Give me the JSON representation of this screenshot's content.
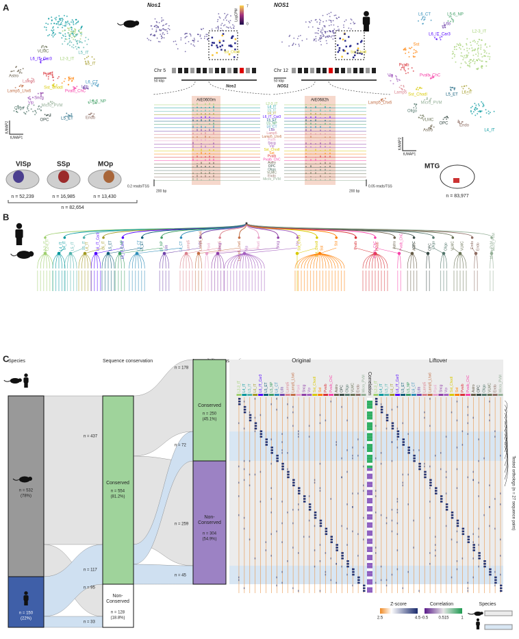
{
  "panel_labels": [
    "A",
    "B",
    "C"
  ],
  "subclasses": [
    "L2-3_IT",
    "L4_IT",
    "L5_IT",
    "L6_IT",
    "L6_IT_Car3",
    "L5_ET",
    "L5_NP",
    "L6_CT",
    "L6b",
    "Lamp5",
    "Lamp5_Lhx6",
    "Pax6",
    "Sncg",
    "Vip",
    "Sst_Chodl",
    "Sst",
    "Pvalb",
    "Pvalb_ChC",
    "Astro",
    "OPC",
    "Oligo",
    "VLMC",
    "Endo",
    "Micro_PVM"
  ],
  "subclass_colors": [
    "#9fcf6e",
    "#00979d",
    "#50b2ad",
    "#a19922",
    "#5100ff",
    "#0d5b78",
    "#3e9e64",
    "#2d8cb8",
    "#7044aa",
    "#da808c",
    "#c26e45",
    "#e8a0c8",
    "#8e3ea7",
    "#a45fbf",
    "#d8c900",
    "#ff7f00",
    "#d93137",
    "#f641a8",
    "#665c47",
    "#374a45",
    "#53776c",
    "#697255",
    "#8d6c62",
    "#94af97"
  ],
  "panel_a": {
    "mouse_umap_labels": [
      "L4_IT",
      "L5_IT",
      "L6_IT",
      "VLMC",
      "L6_IT_Car3",
      "L2-3_IT",
      "Astro",
      "Pvalb",
      "Sst",
      "Lamp5_Lhx6",
      "Lamp5",
      "Sst_Chodl",
      "Pvalb_ChC",
      "L6b",
      "L6_CT",
      "Sncg",
      "Vip",
      "L5-6_NP",
      "Oligo",
      "Micro_PVM",
      "OPC",
      "L5_ET",
      "Endo"
    ],
    "human_umap_labels": [
      "L6_CT",
      "L5-6_NP",
      "L6b",
      "L6_IT_Car3",
      "L2-3_IT",
      "Sst",
      "Pvalb",
      "Vip",
      "Pvalb_ChC",
      "Lamp5",
      "Sst_Chodl",
      "Micro_PVM",
      "L5_ET",
      "L6_IT",
      "Lamp5_Lhx6",
      "Oligo",
      "VLMC",
      "OPC",
      "Astro",
      "Endo",
      "L4_IT"
    ],
    "umap_x": "tUMAP1",
    "umap_y": "tUMAP2",
    "regions": [
      {
        "name": "VISp",
        "n": "n = 52,239",
        "color": "#4b3f8f"
      },
      {
        "name": "SSp",
        "n": "n = 16,985",
        "color": "#9b2a2a"
      },
      {
        "name": "MOp",
        "n": "n = 13,430",
        "color": "#a8663a"
      }
    ],
    "mouse_total": "n = 82,654",
    "mouse_gene": "Nos1",
    "human_gene": "NOS1",
    "colorbar_label": "LogCPM",
    "colorbar_ticks": [
      7,
      0
    ],
    "inset_label": "Sst_Chodl",
    "mouse_chr": "Chr 5",
    "human_chr": "Chr 12",
    "kbp_scale": "50 kbp",
    "mouse_enhancer": "AiE0600m",
    "human_enhancer": "AiE0682h",
    "mouse_track_scale": "0.2 reads/TSS",
    "human_track_scale": "0.05 reads/TSS",
    "bp_scale": "200 bp",
    "human_region": "MTG",
    "human_total": "n = 83,977"
  },
  "panel_c": {
    "species_header": "Species",
    "sequence_header": "Sequence conservation",
    "accessibility_header": "Accessibility conservation",
    "original_header": "Original",
    "liftover_header": "Liftover",
    "correlation_header": "Correlation",
    "mouse_n": "n = 532",
    "mouse_pct": "(78%)",
    "human_n": "n = 150",
    "human_pct": "(22%)",
    "flow_mouse_conserved": "n = 437",
    "flow_human_conserved": "n = 117",
    "flow_mouse_nonconserved": "n = 95",
    "flow_human_nonconserved": "n = 33",
    "seq_conserved": "Conserved",
    "seq_conserved_n": "n = 554",
    "seq_conserved_pct": "(81.2%)",
    "seq_nonconserved": "Non-\nConserved",
    "seq_nonconserved_n": "n = 128",
    "seq_nonconserved_pct": "(18.8%)",
    "flow_a1": "n = 178",
    "flow_a2": "n = 72",
    "flow_a3": "n = 259",
    "flow_a4": "n = 45",
    "acc_conserved": "Conserved",
    "acc_conserved_n": "n = 250",
    "acc_conserved_pct": "(45.1%)",
    "acc_nonconserved": "Non-\nConserved",
    "acc_nonconserved_n": "n = 304",
    "acc_nonconserved_pct": "(54.9%)",
    "y_label": "Tested orthologs (n = 27 sequence pairs)",
    "zscore_label": "Z-score",
    "zscore_ticks": [
      2.5,
      4.5
    ],
    "correlation_label": "Correlation",
    "correlation_ticks": [
      -0.5,
      0.515,
      1
    ],
    "species_label": "Species"
  }
}
